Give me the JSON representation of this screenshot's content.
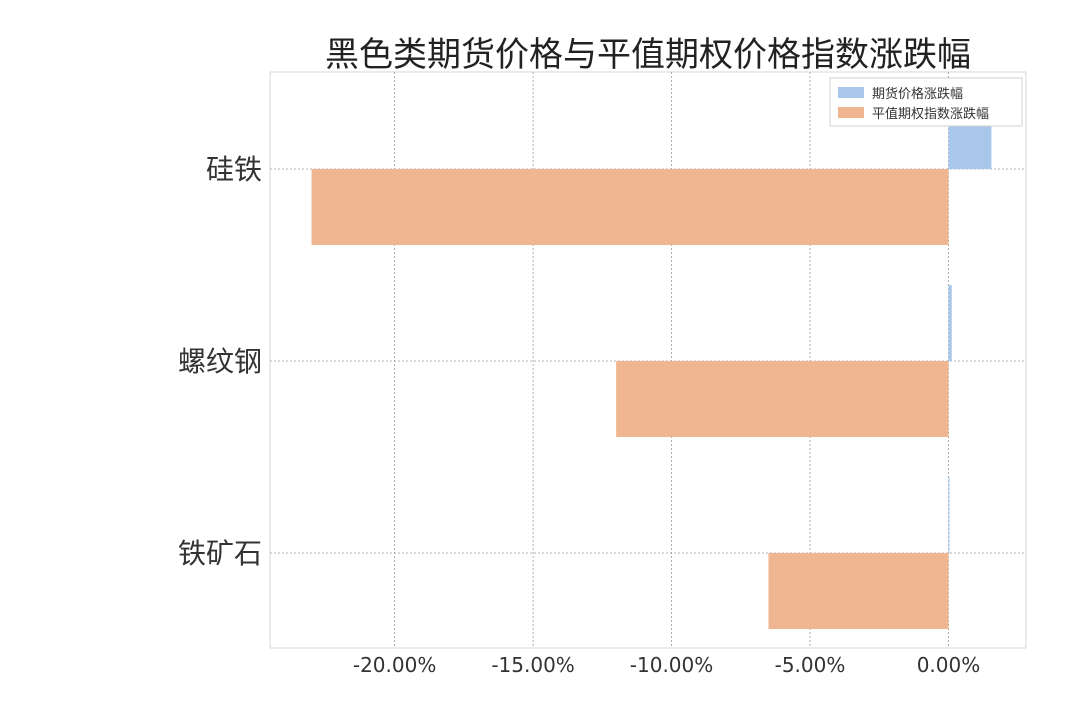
{
  "chart_data": {
    "type": "bar",
    "orientation": "horizontal",
    "title": "黑色类期货价格与平值期权价格指数涨跌幅",
    "categories": [
      "铁矿石",
      "螺纹钢",
      "硅铁"
    ],
    "series": [
      {
        "name": "期货价格涨跌幅",
        "color": "#a8c7eb",
        "values": [
          0.0,
          0.12,
          1.55
        ]
      },
      {
        "name": "平值期权指数涨跌幅",
        "color": "#f0b691",
        "values": [
          -6.5,
          -12.0,
          -23.0
        ]
      }
    ],
    "xlim": [
      -24.5,
      2.8
    ],
    "xticks": [
      -20,
      -15,
      -10,
      -5,
      0
    ],
    "xtick_labels": [
      "-20.00%",
      "-15.00%",
      "-10.00%",
      "-5.00%",
      "0.00%"
    ],
    "grid": true,
    "legend_position": "top-right"
  }
}
